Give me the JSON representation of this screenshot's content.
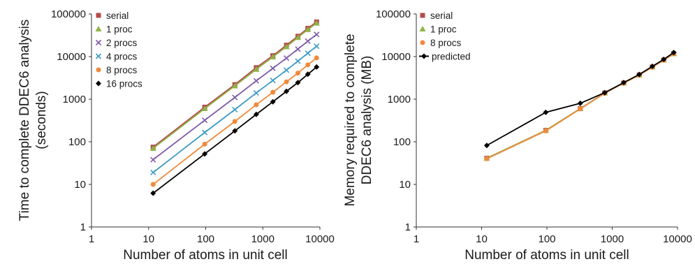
{
  "chart_data": [
    {
      "type": "scatter",
      "title": "",
      "xlabel": "Number of atoms in unit cell",
      "ylabel_lines": [
        "Time to complete DDEC6 analysis",
        "(seconds)"
      ],
      "x_scale": "log",
      "y_scale": "log",
      "xlim": [
        1,
        10000
      ],
      "ylim": [
        1,
        100000
      ],
      "xticks": [
        "1",
        "10",
        "100",
        "1000",
        "10000"
      ],
      "yticks": [
        "1",
        "10",
        "100",
        "1000",
        "10000",
        "100000"
      ],
      "grid": false,
      "legend_position": "top-left",
      "x": [
        12,
        96,
        324,
        768,
        1500,
        2592,
        4116,
        6144,
        8748
      ],
      "series": [
        {
          "name": "serial",
          "marker": "square",
          "color": "#b54a4a",
          "values": [
            75,
            650,
            2200,
            5500,
            10500,
            18500,
            30000,
            46000,
            65000
          ]
        },
        {
          "name": "1 proc",
          "marker": "triangle",
          "color": "#8fb446",
          "values": [
            70,
            600,
            2050,
            5000,
            9800,
            17000,
            28000,
            43000,
            61000
          ]
        },
        {
          "name": "2 procs",
          "marker": "x",
          "color": "#7e5aa8",
          "values": [
            38,
            320,
            1100,
            2700,
            5300,
            9200,
            15000,
            23000,
            33000
          ]
        },
        {
          "name": "4 procs",
          "marker": "x",
          "color": "#3d9bc3",
          "values": [
            19,
            165,
            570,
            1400,
            2750,
            4800,
            7800,
            12000,
            17500
          ]
        },
        {
          "name": "8 procs",
          "marker": "circle",
          "color": "#f08a3c",
          "values": [
            10,
            88,
            300,
            740,
            1450,
            2550,
            4100,
            6400,
            9300
          ]
        },
        {
          "name": "16 procs",
          "marker": "diamond",
          "color": "#000000",
          "values": [
            6.2,
            52,
            180,
            440,
            870,
            1530,
            2450,
            3850,
            5700
          ]
        }
      ]
    },
    {
      "type": "scatter",
      "title": "",
      "xlabel": "Number of atoms in unit cell",
      "ylabel_lines": [
        "Memory required to complete",
        "DDEC6 analysis (MB)"
      ],
      "x_scale": "log",
      "y_scale": "log",
      "xlim": [
        1,
        10000
      ],
      "ylim": [
        1,
        100000
      ],
      "xticks": [
        "1",
        "10",
        "100",
        "1000",
        "10000"
      ],
      "yticks": [
        "1",
        "10",
        "100",
        "1000",
        "10000",
        "100000"
      ],
      "grid": false,
      "legend_position": "top-left",
      "x": [
        12,
        96,
        324,
        768,
        1500,
        2592,
        4116,
        6144,
        8748
      ],
      "series": [
        {
          "name": "serial",
          "marker": "square",
          "color": "#b54a4a",
          "values": [
            41,
            185,
            600,
            1400,
            2400,
            3700,
            5700,
            8300,
            11700
          ]
        },
        {
          "name": "1 proc",
          "marker": "triangle",
          "color": "#8fb446",
          "values": [
            41,
            185,
            600,
            1400,
            2400,
            3700,
            5700,
            8300,
            11700
          ]
        },
        {
          "name": "8 procs",
          "marker": "circle",
          "color": "#f08a3c",
          "values": [
            40,
            180,
            590,
            1380,
            2380,
            3680,
            5650,
            8250,
            11600
          ]
        },
        {
          "name": "predicted",
          "marker": "diamond",
          "color": "#000000",
          "values": [
            82,
            490,
            800,
            1420,
            2450,
            3800,
            5900,
            8600,
            12400
          ]
        }
      ]
    }
  ]
}
